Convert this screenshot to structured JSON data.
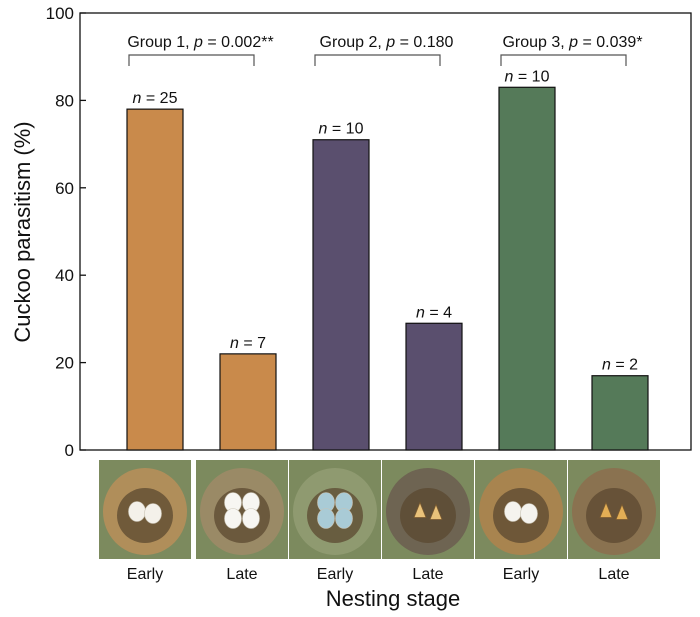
{
  "chart_data": {
    "type": "bar",
    "ylabel": "Cuckoo parasitism (%)",
    "xlabel": "Nesting stage",
    "ylim": [
      0,
      100
    ],
    "yticks": [
      0,
      20,
      40,
      60,
      80,
      100
    ],
    "grid": false,
    "categories": [
      "Early",
      "Late",
      "Early",
      "Late",
      "Early",
      "Late"
    ],
    "bars": [
      {
        "category": "Early",
        "group": "Group 1",
        "value": 78,
        "label": "25",
        "color": "#C98A4B"
      },
      {
        "category": "Late",
        "group": "Group 1",
        "value": 22,
        "label": "7",
        "color": "#C98A4B"
      },
      {
        "category": "Early",
        "group": "Group 2",
        "value": 71,
        "label": "10",
        "color": "#5A4F6E"
      },
      {
        "category": "Late",
        "group": "Group 2",
        "value": 29,
        "label": "4",
        "color": "#5A4F6E"
      },
      {
        "category": "Early",
        "group": "Group 3",
        "value": 83,
        "label": "10",
        "color": "#557A59"
      },
      {
        "category": "Late",
        "group": "Group 3",
        "value": 17,
        "label": "2",
        "color": "#557A59"
      }
    ],
    "groups": [
      {
        "name": "Group 1",
        "p": "0.002",
        "sig": "**"
      },
      {
        "name": "Group 2",
        "p": "0.180",
        "sig": ""
      },
      {
        "name": "Group 3",
        "p": "0.039",
        "sig": "*"
      }
    ],
    "nest_photos": [
      {
        "stage": "Early",
        "eggs": 2,
        "egg_color": "#F4F1EA",
        "nest_color": "#B08E5A",
        "content": "eggs"
      },
      {
        "stage": "Late",
        "eggs": 4,
        "egg_color": "#F7F6F2",
        "nest_color": "#9A8A66",
        "content": "eggs"
      },
      {
        "stage": "Early",
        "eggs": 4,
        "egg_color": "#A9CBD6",
        "nest_color": "#8F9A70",
        "content": "eggs"
      },
      {
        "stage": "Late",
        "eggs": 2,
        "egg_color": "#E9C27A",
        "nest_color": "#6E6452",
        "content": "nestlings"
      },
      {
        "stage": "Early",
        "eggs": 2,
        "egg_color": "#F5F3EE",
        "nest_color": "#A8844F",
        "content": "eggs"
      },
      {
        "stage": "Late",
        "eggs": 2,
        "egg_color": "#E3AE55",
        "nest_color": "#8A7250",
        "content": "nestlings"
      }
    ]
  }
}
